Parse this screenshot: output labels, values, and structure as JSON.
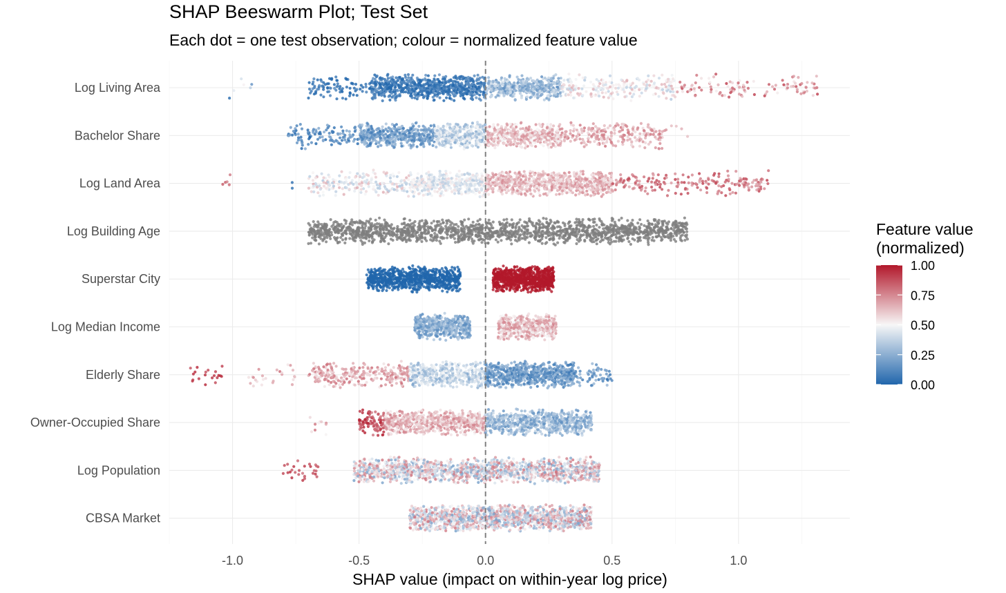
{
  "chart_data": {
    "type": "scatter",
    "subtype": "beeswarm",
    "title": "SHAP Beeswarm Plot; Test Set",
    "subtitle": "Each dot = one test observation; colour = normalized feature value",
    "xlabel": "SHAP value (impact on within-year log price)",
    "ylabel": "",
    "xlim": [
      -1.25,
      1.44
    ],
    "x_ticks": [
      -1.0,
      -0.5,
      0.0,
      0.5,
      1.0
    ],
    "x_tick_labels": [
      "-1.0",
      "-0.5",
      "0.0",
      "0.5",
      "1.0"
    ],
    "grid": true,
    "reference_line": {
      "x": 0.0,
      "style": "dashed",
      "color": "#7f7f7f"
    },
    "legend": {
      "title_line1": "Feature value",
      "title_line2": "(normalized)",
      "placement": "right",
      "ticks": [
        1.0,
        0.75,
        0.5,
        0.25,
        0.0
      ],
      "tick_labels": [
        "1.00",
        "0.75",
        "0.50",
        "0.25",
        "0.00"
      ],
      "low_color": "#2166ac",
      "mid_color": "#f7f7f7",
      "high_color": "#b2182b",
      "na_color": "#7f7f7f"
    },
    "features": [
      {
        "name": "Log Living Area",
        "clusters": [
          {
            "x_min": -1.06,
            "x_max": -0.9,
            "count": 6,
            "value": 0.3,
            "value_spread": 0.3
          },
          {
            "x_min": -0.7,
            "x_max": -0.45,
            "count": 90,
            "value": 0.02,
            "value_spread": 0.12
          },
          {
            "x_min": -0.45,
            "x_max": 0.0,
            "count": 700,
            "value": 0.06,
            "value_spread": 0.1
          },
          {
            "x_min": 0.0,
            "x_max": 0.3,
            "count": 420,
            "value": 0.28,
            "value_spread": 0.14
          },
          {
            "x_min": 0.3,
            "x_max": 0.75,
            "count": 210,
            "value": 0.5,
            "value_spread": 0.16
          },
          {
            "x_min": 0.75,
            "x_max": 1.32,
            "count": 110,
            "value": 0.72,
            "value_spread": 0.2
          }
        ]
      },
      {
        "name": "Bachelor Share",
        "clusters": [
          {
            "x_min": -0.78,
            "x_max": -0.5,
            "count": 110,
            "value": 0.12,
            "value_spread": 0.12
          },
          {
            "x_min": -0.5,
            "x_max": -0.2,
            "count": 430,
            "value": 0.2,
            "value_spread": 0.13
          },
          {
            "x_min": -0.2,
            "x_max": 0.0,
            "count": 320,
            "value": 0.38,
            "value_spread": 0.14
          },
          {
            "x_min": 0.0,
            "x_max": 0.3,
            "count": 450,
            "value": 0.62,
            "value_spread": 0.14
          },
          {
            "x_min": 0.3,
            "x_max": 0.7,
            "count": 230,
            "value": 0.68,
            "value_spread": 0.12
          },
          {
            "x_min": 0.7,
            "x_max": 0.8,
            "count": 6,
            "value": 0.66,
            "value_spread": 0.08
          }
        ]
      },
      {
        "name": "Log Land Area",
        "clusters": [
          {
            "x_min": -1.06,
            "x_max": -1.0,
            "count": 5,
            "value": 0.82,
            "value_spread": 0.06
          },
          {
            "x_min": -0.77,
            "x_max": -0.76,
            "count": 2,
            "value": 0.05,
            "value_spread": 0.03
          },
          {
            "x_min": -0.7,
            "x_max": -0.3,
            "count": 190,
            "value": 0.5,
            "value_spread": 0.18
          },
          {
            "x_min": -0.3,
            "x_max": 0.0,
            "count": 400,
            "value": 0.46,
            "value_spread": 0.12
          },
          {
            "x_min": 0.0,
            "x_max": 0.5,
            "count": 720,
            "value": 0.64,
            "value_spread": 0.12
          },
          {
            "x_min": 0.5,
            "x_max": 1.12,
            "count": 190,
            "value": 0.8,
            "value_spread": 0.12
          }
        ]
      },
      {
        "name": "Log Building Age",
        "clusters": [
          {
            "x_min": -0.7,
            "x_max": 0.8,
            "count": 1700,
            "value": null,
            "value_spread": 0
          }
        ]
      },
      {
        "name": "Superstar City",
        "clusters": [
          {
            "x_min": -0.47,
            "x_max": -0.1,
            "count": 800,
            "value": 0.0,
            "value_spread": 0
          },
          {
            "x_min": 0.03,
            "x_max": 0.27,
            "count": 800,
            "value": 1.0,
            "value_spread": 0
          }
        ]
      },
      {
        "name": "Log Median Income",
        "clusters": [
          {
            "x_min": -0.28,
            "x_max": -0.06,
            "count": 500,
            "value": 0.24,
            "value_spread": 0.12
          },
          {
            "x_min": 0.05,
            "x_max": 0.28,
            "count": 500,
            "value": 0.62,
            "value_spread": 0.14
          }
        ]
      },
      {
        "name": "Elderly Share",
        "clusters": [
          {
            "x_min": -1.17,
            "x_max": -1.04,
            "count": 20,
            "value": 0.92,
            "value_spread": 0.06
          },
          {
            "x_min": -0.94,
            "x_max": -0.7,
            "count": 25,
            "value": 0.68,
            "value_spread": 0.14
          },
          {
            "x_min": -0.7,
            "x_max": -0.3,
            "count": 260,
            "value": 0.68,
            "value_spread": 0.14
          },
          {
            "x_min": -0.3,
            "x_max": 0.0,
            "count": 400,
            "value": 0.36,
            "value_spread": 0.14
          },
          {
            "x_min": 0.0,
            "x_max": 0.35,
            "count": 700,
            "value": 0.18,
            "value_spread": 0.12
          },
          {
            "x_min": 0.35,
            "x_max": 0.5,
            "count": 60,
            "value": 0.16,
            "value_spread": 0.12
          }
        ]
      },
      {
        "name": "Owner-Occupied Share",
        "clusters": [
          {
            "x_min": -0.74,
            "x_max": -0.6,
            "count": 10,
            "value": 0.62,
            "value_spread": 0.18
          },
          {
            "x_min": -0.5,
            "x_max": -0.4,
            "count": 90,
            "value": 0.88,
            "value_spread": 0.1
          },
          {
            "x_min": -0.4,
            "x_max": 0.0,
            "count": 650,
            "value": 0.64,
            "value_spread": 0.14
          },
          {
            "x_min": 0.0,
            "x_max": 0.42,
            "count": 700,
            "value": 0.28,
            "value_spread": 0.14
          }
        ]
      },
      {
        "name": "Log Population",
        "clusters": [
          {
            "x_min": -0.8,
            "x_max": -0.66,
            "count": 28,
            "value": 0.88,
            "value_spread": 0.08
          },
          {
            "x_min": -0.52,
            "x_max": 0.45,
            "count": 1500,
            "value": 0.5,
            "value_spread": 0.3
          }
        ]
      },
      {
        "name": "CBSA Market",
        "clusters": [
          {
            "x_min": -0.3,
            "x_max": 0.42,
            "count": 1500,
            "value": 0.5,
            "value_spread": 0.3
          }
        ]
      }
    ]
  }
}
